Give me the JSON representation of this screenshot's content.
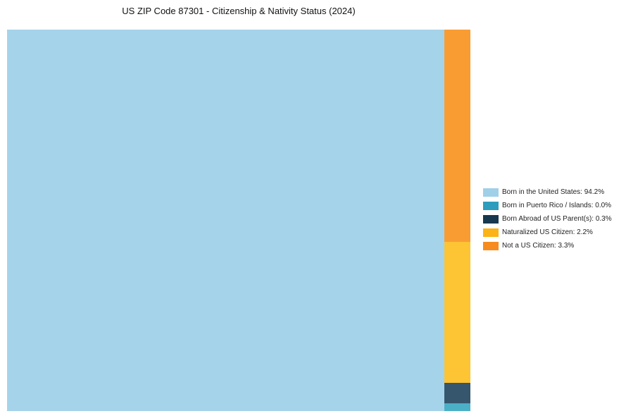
{
  "title": "US ZIP Code 87301 - Citizenship & Nativity Status (2024)",
  "chart_data": {
    "type": "treemap",
    "title": "US ZIP Code 87301 - Citizenship & Nativity Status (2024)",
    "categories": [
      "Born in the United States",
      "Born in Puerto Rico / Islands",
      "Born Abroad of US Parent(s)",
      "Naturalized US Citizen",
      "Not a US Citizen"
    ],
    "values": [
      94.2,
      0.0,
      0.3,
      2.2,
      3.3
    ],
    "unit": "%",
    "legend_position": "right",
    "layout_note": "Largest category fills left block; remaining categories stacked in a narrow right column (Not a US Citizen top, then Naturalized US Citizen, Born Abroad of US Parent(s), Born in Puerto Rico / Islands at bottom)"
  },
  "colors": {
    "background": "#ffffff",
    "title_text": "#111111",
    "legend_text": "#222222"
  },
  "segments": [
    {
      "id": "born-in-us",
      "label": "Born in the United States",
      "value_pct": 94.2,
      "legend_label": "Born in the United States: 94.2%",
      "chart_color": "#a5d3ea",
      "legend_color": "#a0d0e7"
    },
    {
      "id": "born-in-pr-islands",
      "label": "Born in Puerto Rico / Islands",
      "value_pct": 0.0,
      "legend_label": "Born in Puerto Rico / Islands: 0.0%",
      "chart_color": "#4bafc6",
      "legend_color": "#2d9cbd"
    },
    {
      "id": "born-abroad-us-parents",
      "label": "Born Abroad of US Parent(s)",
      "value_pct": 0.3,
      "legend_label": "Born Abroad of US Parent(s): 0.3%",
      "chart_color": "#35566d",
      "legend_color": "#17384f"
    },
    {
      "id": "naturalized-us-citizen",
      "label": "Naturalized US Citizen",
      "value_pct": 2.2,
      "legend_label": "Naturalized US Citizen: 2.2%",
      "chart_color": "#fdc434",
      "legend_color": "#fcb316"
    },
    {
      "id": "not-us-citizen",
      "label": "Not a US Citizen",
      "value_pct": 3.3,
      "legend_label": "Not a US Citizen: 3.3%",
      "chart_color": "#f99d33",
      "legend_color": "#f68b1f"
    }
  ]
}
